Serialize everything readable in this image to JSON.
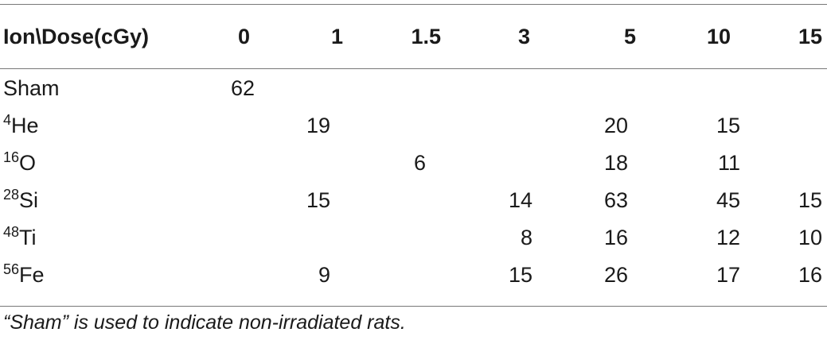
{
  "table": {
    "header": [
      "Ion\\Dose(cGy)",
      "0",
      "1",
      "1.5",
      "3",
      "5",
      "10",
      "15"
    ],
    "rows": [
      {
        "mass": "",
        "ion": "Sham",
        "cells": [
          "62",
          "",
          "",
          "",
          "",
          "",
          ""
        ]
      },
      {
        "mass": "4",
        "ion": "He",
        "cells": [
          "",
          "19",
          "",
          "",
          "20",
          "15",
          ""
        ]
      },
      {
        "mass": "16",
        "ion": "O",
        "cells": [
          "",
          "",
          "6",
          "",
          "18",
          "11",
          ""
        ]
      },
      {
        "mass": "28",
        "ion": "Si",
        "cells": [
          "",
          "15",
          "",
          "14",
          "63",
          "45",
          "15"
        ]
      },
      {
        "mass": "48",
        "ion": "Ti",
        "cells": [
          "",
          "",
          "",
          "8",
          "16",
          "12",
          "10"
        ]
      },
      {
        "mass": "56",
        "ion": "Fe",
        "cells": [
          "",
          "9",
          "",
          "15",
          "26",
          "17",
          "16"
        ]
      }
    ]
  },
  "footnote": "“Sham” is used to indicate non-irradiated rats."
}
